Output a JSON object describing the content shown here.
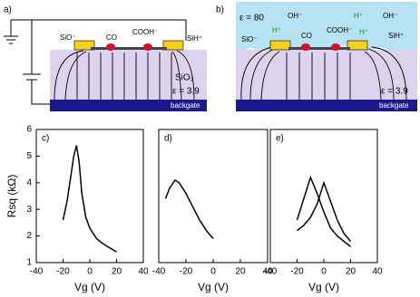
{
  "diagrams": {
    "a": {
      "label": "a)",
      "sio": "SiO⁻",
      "co": "CO",
      "cooh": "COOH⁻",
      "sih": "SiH⁺",
      "oxide": "SiO₂",
      "eps": "ε = 3.9",
      "gate": "backgate"
    },
    "b": {
      "label": "b)",
      "eps_water": "ε = 80",
      "oh1": "OH⁻",
      "h1": "H⁺",
      "sio": "SiO⁻",
      "co": "CO",
      "h2": "H⁺",
      "cooh": "COOH⁻",
      "oh2": "OH⁻",
      "h3": "H⁺",
      "sih": "SiH⁺",
      "eps": "ε = 3.9",
      "gate": "backgate"
    }
  },
  "chart_data": [
    {
      "type": "line",
      "label": "c)",
      "xlabel": "Vg (V)",
      "ylabel": "Rsq (kΩ)",
      "x": [
        -20,
        -17,
        -14,
        -12,
        -10,
        -8,
        -6,
        -3,
        0,
        5,
        10,
        15,
        20
      ],
      "series": [
        {
          "color": "#000000",
          "values": [
            2.6,
            3.3,
            4.3,
            5.0,
            5.4,
            4.8,
            3.6,
            2.7,
            2.3,
            1.9,
            1.7,
            1.55,
            1.4
          ]
        }
      ],
      "xlim": [
        -40,
        40
      ],
      "xticks": [
        -40,
        -20,
        0,
        20,
        40
      ],
      "ylim": [
        1,
        6
      ],
      "yticks": [
        1,
        2,
        3,
        4,
        5,
        6
      ]
    },
    {
      "type": "line",
      "label": "d)",
      "xlabel": "Vg (V)",
      "x": [
        -35,
        -32,
        -28,
        -25,
        -20,
        -15,
        -10,
        -5,
        0
      ],
      "series": [
        {
          "color": "#000000",
          "values": [
            3.4,
            3.8,
            4.1,
            4.0,
            3.6,
            3.1,
            2.6,
            2.2,
            1.9
          ]
        }
      ],
      "xlim": [
        -40,
        40
      ],
      "xticks": [
        -40,
        -20,
        0,
        20,
        40
      ],
      "ylim": [
        1,
        6
      ]
    },
    {
      "type": "line",
      "label": "e)",
      "xlabel": "Vg (V)",
      "x": [
        -20,
        -15,
        -10,
        -5,
        0,
        5,
        10,
        15,
        20
      ],
      "series": [
        {
          "color": "#000000",
          "values": [
            2.6,
            3.4,
            4.2,
            3.6,
            2.9,
            2.3,
            2.0,
            1.8,
            1.6
          ]
        },
        {
          "color": "#000000",
          "values": [
            2.2,
            2.4,
            2.7,
            3.2,
            4.0,
            3.3,
            2.6,
            2.1,
            1.8
          ]
        }
      ],
      "xlim": [
        -40,
        40
      ],
      "xticks": [
        -40,
        -20,
        0,
        20,
        40
      ],
      "ylim": [
        1,
        6
      ]
    }
  ]
}
